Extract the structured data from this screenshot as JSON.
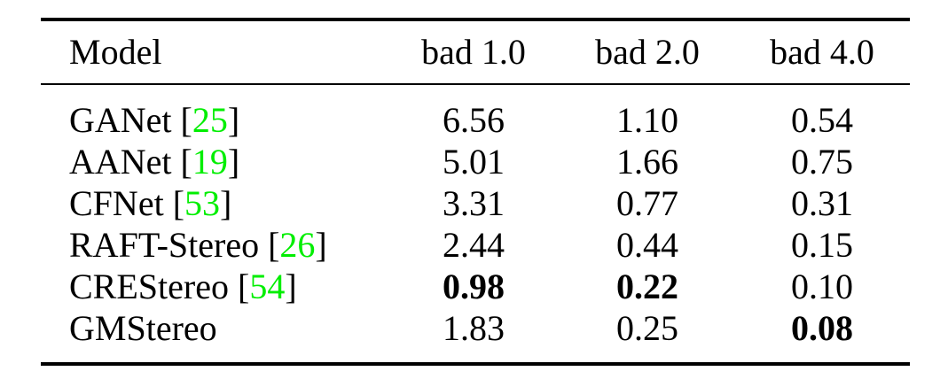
{
  "table": {
    "columns": [
      {
        "label": "Model"
      },
      {
        "label": "bad 1.0"
      },
      {
        "label": "bad 2.0"
      },
      {
        "label": "bad 4.0"
      }
    ],
    "bracket_open": "[",
    "bracket_close": "]",
    "citation_color": "#00ee00",
    "rows": [
      {
        "model": "GANet",
        "cite": "25",
        "values": [
          "6.56",
          "1.10",
          "0.54"
        ],
        "bold": [
          false,
          false,
          false
        ]
      },
      {
        "model": "AANet",
        "cite": "19",
        "values": [
          "5.01",
          "1.66",
          "0.75"
        ],
        "bold": [
          false,
          false,
          false
        ]
      },
      {
        "model": "CFNet",
        "cite": "53",
        "values": [
          "3.31",
          "0.77",
          "0.31"
        ],
        "bold": [
          false,
          false,
          false
        ]
      },
      {
        "model": "RAFT-Stereo",
        "cite": "26",
        "values": [
          "2.44",
          "0.44",
          "0.15"
        ],
        "bold": [
          false,
          false,
          false
        ]
      },
      {
        "model": "CREStereo",
        "cite": "54",
        "values": [
          "0.98",
          "0.22",
          "0.10"
        ],
        "bold": [
          true,
          true,
          false
        ]
      },
      {
        "model": "GMStereo",
        "cite": null,
        "values": [
          "1.83",
          "0.25",
          "0.08"
        ],
        "bold": [
          false,
          false,
          true
        ]
      }
    ]
  }
}
